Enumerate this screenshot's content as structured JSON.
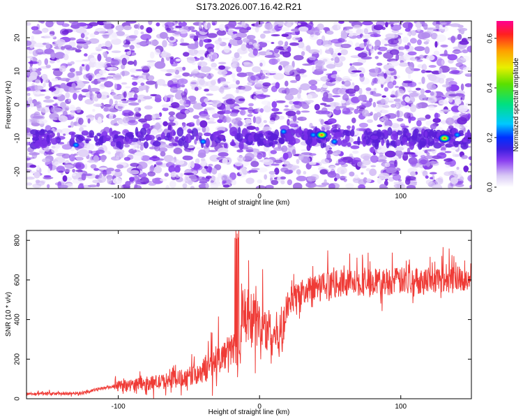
{
  "title": "S173.2026.007.16.42.R21",
  "chart_data": [
    {
      "type": "heatmap",
      "xlabel": "Height of straight line (km)",
      "ylabel": "Frequency (Hz)",
      "xlim": [
        -165,
        150
      ],
      "ylim": [
        -25,
        25
      ],
      "x_ticks": [
        -100,
        0,
        100
      ],
      "y_ticks": [
        -20,
        -10,
        0,
        10,
        20
      ],
      "colorbar": {
        "label": "Normalized spectral amplitude",
        "range": [
          0.0,
          0.67
        ],
        "ticks": [
          "0.0",
          "0.2",
          "0.4",
          "0.6"
        ],
        "tick_values": [
          0.0,
          0.2,
          0.4,
          0.6
        ]
      },
      "signal_band_frequency_hz": -10,
      "peaks": [
        {
          "x": -130,
          "y": -12,
          "amp": 0.22
        },
        {
          "x": -40,
          "y": -11,
          "amp": 0.22
        },
        {
          "x": 17,
          "y": -8,
          "amp": 0.25
        },
        {
          "x": 38,
          "y": -9,
          "amp": 0.3
        },
        {
          "x": 44,
          "y": -9,
          "amp": 0.52
        },
        {
          "x": 53,
          "y": -11,
          "amp": 0.22
        },
        {
          "x": 131,
          "y": -10,
          "amp": 0.45
        },
        {
          "x": 140,
          "y": -9,
          "amp": 0.25
        }
      ]
    },
    {
      "type": "line",
      "xlabel": "Height of straight line (km)",
      "ylabel": "SNR (10 * v/v)",
      "xlim": [
        -165,
        150
      ],
      "ylim": [
        0,
        850
      ],
      "x_ticks": [
        -100,
        0,
        100
      ],
      "y_ticks": [
        0,
        200,
        400,
        600,
        800
      ],
      "color": "#ef3b36",
      "series": [
        {
          "name": "SNR",
          "x": [
            -165,
            -140,
            -125,
            -110,
            -90,
            -70,
            -50,
            -35,
            -25,
            -18,
            -15,
            -12,
            -5,
            0,
            10,
            15,
            20,
            25,
            40,
            60,
            80,
            100,
            120,
            150
          ],
          "y": [
            25,
            25,
            30,
            55,
            70,
            85,
            110,
            160,
            220,
            260,
            140,
            420,
            400,
            370,
            330,
            320,
            480,
            520,
            565,
            585,
            590,
            595,
            600,
            615
          ]
        }
      ]
    }
  ]
}
